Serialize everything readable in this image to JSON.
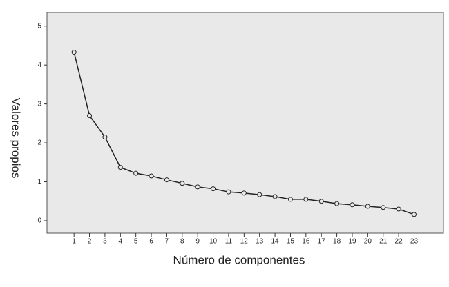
{
  "chart_data": {
    "type": "line",
    "x_label": "Número de componentes",
    "y_label": "Valores propios",
    "x": [
      1,
      2,
      3,
      4,
      5,
      6,
      7,
      8,
      9,
      10,
      11,
      12,
      13,
      14,
      15,
      16,
      17,
      18,
      19,
      20,
      21,
      22,
      23
    ],
    "series": [
      {
        "color": "#222222",
        "values": [
          4.33,
          2.7,
          2.15,
          1.37,
          1.22,
          1.15,
          1.05,
          0.96,
          0.87,
          0.82,
          0.74,
          0.71,
          0.67,
          0.62,
          0.55,
          0.55,
          0.5,
          0.44,
          0.41,
          0.37,
          0.34,
          0.3,
          0.16
        ]
      }
    ],
    "xlim": [
      -0.75,
      24.9
    ],
    "xticks": [
      1,
      2,
      3,
      4,
      5,
      6,
      7,
      8,
      9,
      10,
      11,
      12,
      13,
      14,
      15,
      16,
      17,
      18,
      19,
      20,
      21,
      22,
      23
    ],
    "ylim": [
      -0.32,
      5.35
    ],
    "yticks": [
      0,
      1,
      2,
      3,
      4,
      5
    ],
    "background": "#e9e9e9"
  }
}
